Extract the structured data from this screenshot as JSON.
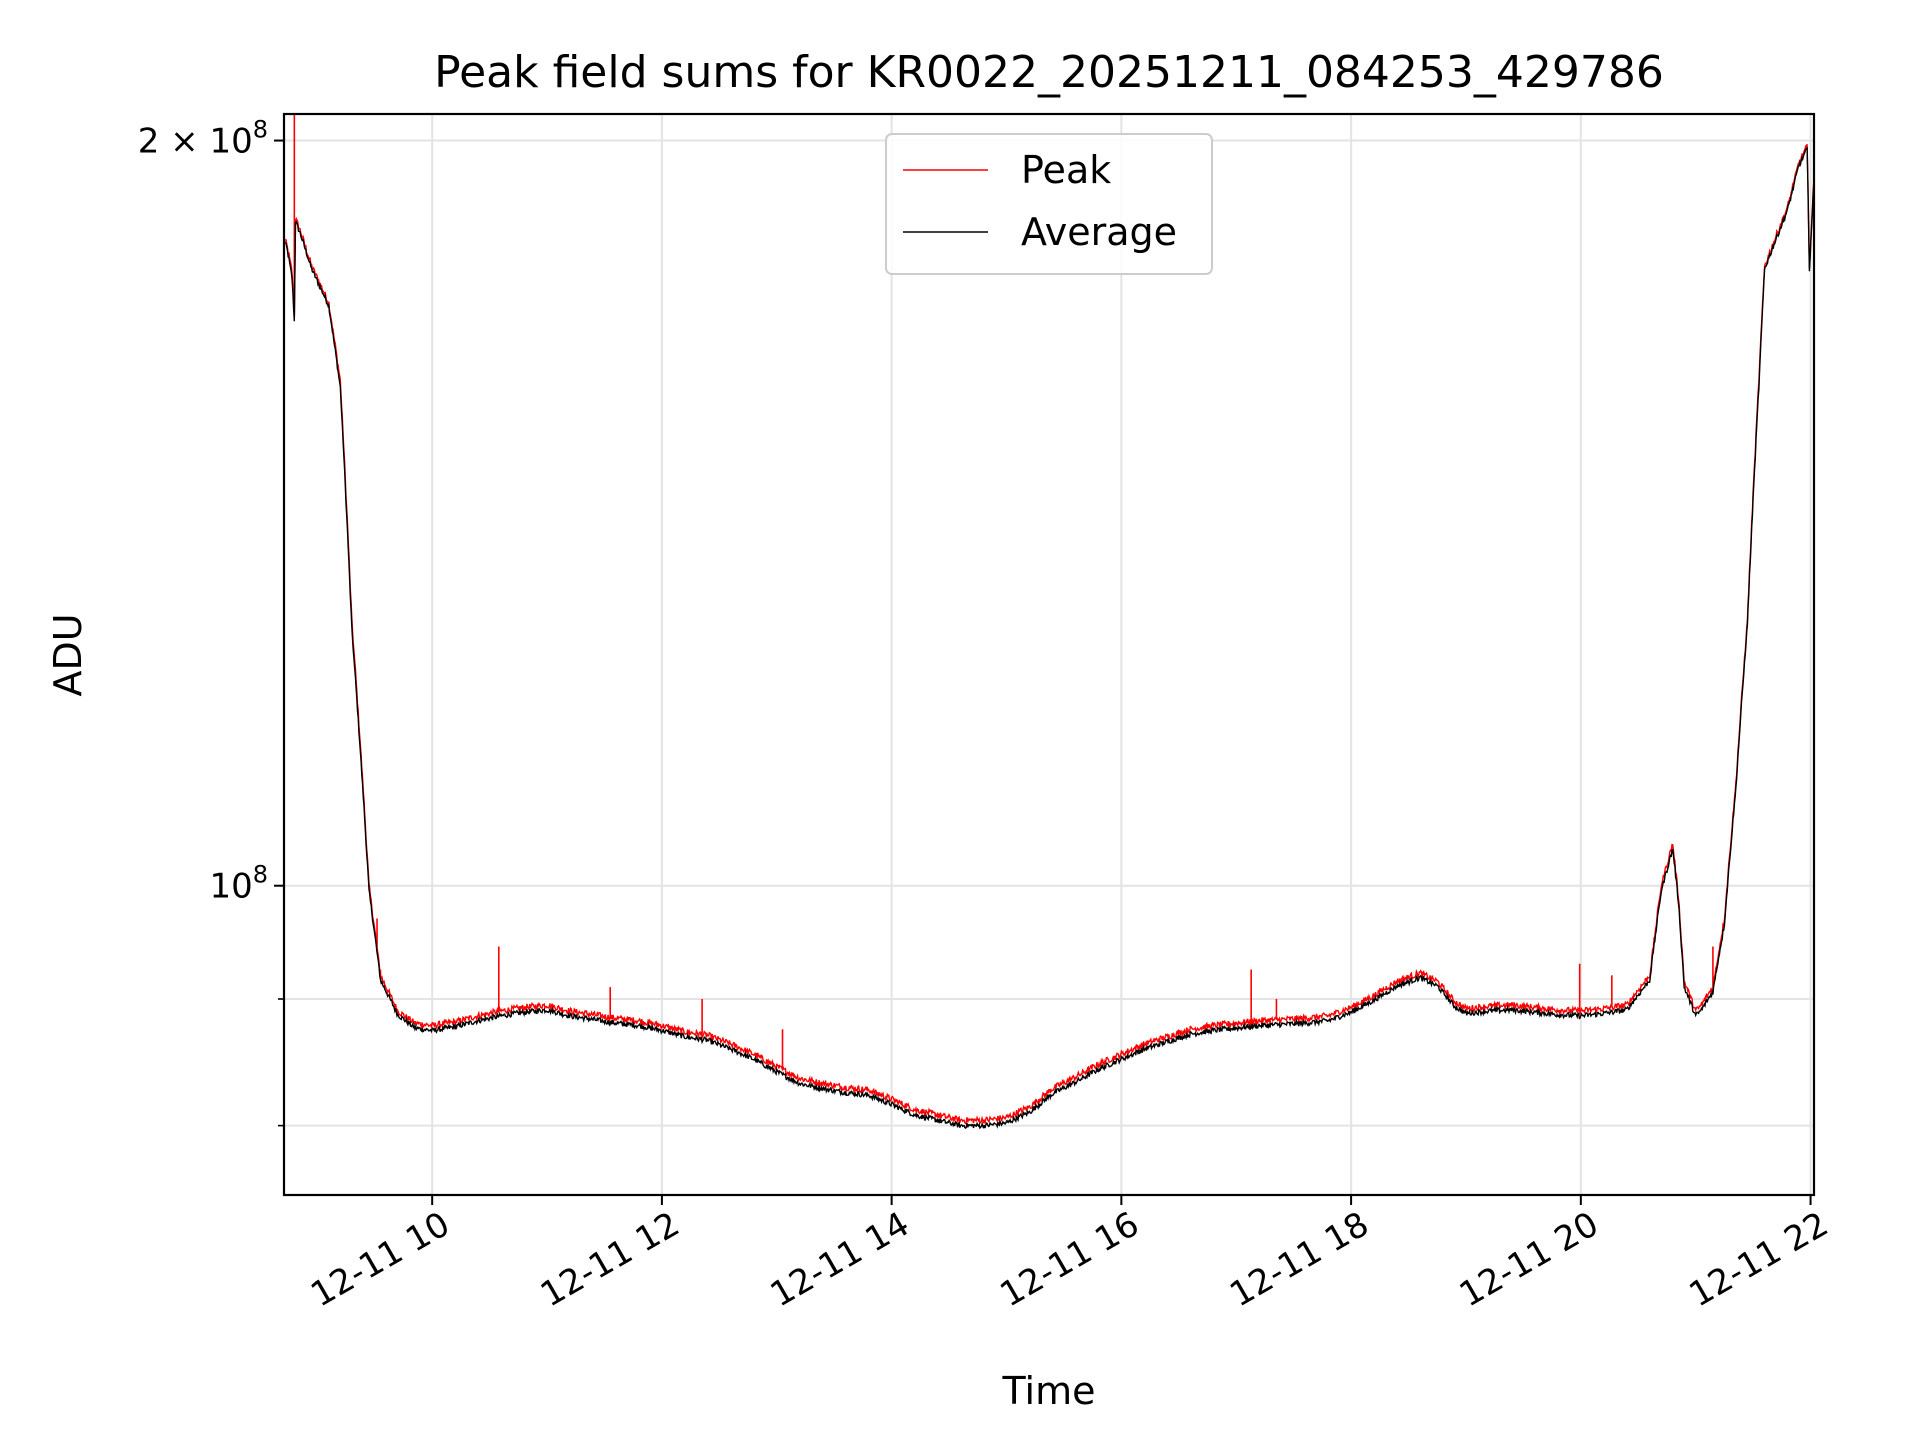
{
  "chart_data": {
    "type": "line",
    "title": "Peak field sums for KR0022_20251211_084253_429786",
    "xlabel": "Time",
    "ylabel": "ADU",
    "yscale": "log",
    "grid": true,
    "legend_position": "top-center",
    "x_unit": "hours since 2025-12-11 00:00",
    "xlim": [
      8.71,
      22.03
    ],
    "ylim": [
      75000000,
      205000000
    ],
    "x_ticks": [
      {
        "value": 10,
        "label": "12-11 10"
      },
      {
        "value": 12,
        "label": "12-11 12"
      },
      {
        "value": 14,
        "label": "12-11 14"
      },
      {
        "value": 16,
        "label": "12-11 16"
      },
      {
        "value": 18,
        "label": "12-11 18"
      },
      {
        "value": 20,
        "label": "12-11 20"
      },
      {
        "value": 22,
        "label": "12-11 22"
      }
    ],
    "y_major_ticks": [
      {
        "value": 100000000,
        "base": "10",
        "exp": "8",
        "mult": ""
      },
      {
        "value": 200000000,
        "base": "10",
        "exp": "8",
        "mult": "2 × "
      }
    ],
    "y_minor_ticks": [
      80000000,
      90000000
    ],
    "series": [
      {
        "name": "Peak",
        "color": "#ff0000",
        "x": [
          8.71,
          8.74,
          8.78,
          8.8,
          8.81,
          8.85,
          8.95,
          9.1,
          9.2,
          9.3,
          9.45,
          9.55,
          9.7,
          9.85,
          10.0,
          10.2,
          10.4,
          10.6,
          10.8,
          11.0,
          11.2,
          11.4,
          11.6,
          11.8,
          12.0,
          12.2,
          12.4,
          12.6,
          12.8,
          13.0,
          13.2,
          13.4,
          13.6,
          13.8,
          14.0,
          14.2,
          14.4,
          14.6,
          14.8,
          15.0,
          15.2,
          15.4,
          15.6,
          15.8,
          16.0,
          16.2,
          16.4,
          16.6,
          16.8,
          17.0,
          17.2,
          17.4,
          17.6,
          17.8,
          18.0,
          18.2,
          18.4,
          18.6,
          18.75,
          18.9,
          19.0,
          19.2,
          19.4,
          19.6,
          19.8,
          20.0,
          20.2,
          20.4,
          20.6,
          20.7,
          20.8,
          20.85,
          20.9,
          21.0,
          21.05,
          21.15,
          21.25,
          21.35,
          21.45,
          21.55,
          21.6,
          21.7,
          21.8,
          21.9,
          21.97,
          21.99,
          22.03
        ],
        "values": [
          183000000,
          181000000,
          177000000,
          170000000,
          186000000,
          184000000,
          178000000,
          172000000,
          160000000,
          128000000,
          100000000,
          92000000,
          89000000,
          88000000,
          87800000,
          88100000,
          88600000,
          89000000,
          89300000,
          89500000,
          89000000,
          88700000,
          88400000,
          88200000,
          87800000,
          87300000,
          87000000,
          86300000,
          85500000,
          84500000,
          83600000,
          83200000,
          82900000,
          82700000,
          82000000,
          81200000,
          80800000,
          80400000,
          80400000,
          80600000,
          81400000,
          82800000,
          83700000,
          84700000,
          85500000,
          86300000,
          86900000,
          87500000,
          87800000,
          88000000,
          88200000,
          88300000,
          88400000,
          88600000,
          89300000,
          90300000,
          91500000,
          92200000,
          91500000,
          89800000,
          89200000,
          89400000,
          89500000,
          89300000,
          89100000,
          89000000,
          89200000,
          89500000,
          92000000,
          100000000,
          104000000,
          99000000,
          91500000,
          89000000,
          89500000,
          91000000,
          97000000,
          110000000,
          128000000,
          160000000,
          178000000,
          183000000,
          188000000,
          196000000,
          199000000,
          178000000,
          193000000
        ],
        "spikes": [
          [
            8.8,
            205000000
          ],
          [
            9.52,
            97000000
          ],
          [
            9.55,
            92500000
          ],
          [
            10.58,
            94500000
          ],
          [
            11.55,
            91000000
          ],
          [
            12.35,
            90000000
          ],
          [
            13.05,
            87500000
          ],
          [
            17.13,
            92500000
          ],
          [
            17.35,
            90000000
          ],
          [
            19.99,
            93000000
          ],
          [
            20.27,
            92000000
          ],
          [
            21.15,
            94500000
          ]
        ]
      },
      {
        "name": "Average",
        "color": "#000000",
        "x": [
          8.71,
          8.74,
          8.78,
          8.8,
          8.81,
          8.85,
          8.95,
          9.1,
          9.2,
          9.3,
          9.45,
          9.55,
          9.7,
          9.85,
          10.0,
          10.2,
          10.4,
          10.6,
          10.8,
          11.0,
          11.2,
          11.4,
          11.6,
          11.8,
          12.0,
          12.2,
          12.4,
          12.6,
          12.8,
          13.0,
          13.2,
          13.4,
          13.6,
          13.8,
          14.0,
          14.2,
          14.4,
          14.6,
          14.8,
          15.0,
          15.2,
          15.4,
          15.6,
          15.8,
          16.0,
          16.2,
          16.4,
          16.6,
          16.8,
          17.0,
          17.2,
          17.4,
          17.6,
          17.8,
          18.0,
          18.2,
          18.4,
          18.6,
          18.75,
          18.9,
          19.0,
          19.2,
          19.4,
          19.6,
          19.8,
          20.0,
          20.2,
          20.4,
          20.6,
          20.7,
          20.8,
          20.85,
          20.9,
          21.0,
          21.05,
          21.15,
          21.25,
          21.35,
          21.45,
          21.55,
          21.6,
          21.7,
          21.8,
          21.9,
          21.97,
          21.99,
          22.03
        ],
        "values": [
          182500000,
          180500000,
          176000000,
          169000000,
          185500000,
          183500000,
          177500000,
          171500000,
          159000000,
          127000000,
          99500000,
          91600000,
          88700000,
          87600000,
          87400000,
          87700000,
          88200000,
          88600000,
          88900000,
          89100000,
          88600000,
          88300000,
          88000000,
          87800000,
          87400000,
          86900000,
          86600000,
          85900000,
          85100000,
          84100000,
          83200000,
          82800000,
          82500000,
          82300000,
          81600000,
          80800000,
          80400000,
          80000000,
          80000000,
          80200000,
          81000000,
          82400000,
          83300000,
          84300000,
          85100000,
          85900000,
          86500000,
          87100000,
          87400000,
          87600000,
          87800000,
          87900000,
          88000000,
          88200000,
          88900000,
          89900000,
          91100000,
          91800000,
          91100000,
          89400000,
          88800000,
          89000000,
          89100000,
          88900000,
          88700000,
          88600000,
          88800000,
          89100000,
          91600000,
          99500000,
          103500000,
          98500000,
          91000000,
          88600000,
          89100000,
          90600000,
          96500000,
          109500000,
          127500000,
          159000000,
          177500000,
          182500000,
          187500000,
          195500000,
          198500000,
          177500000,
          192500000
        ]
      }
    ]
  }
}
